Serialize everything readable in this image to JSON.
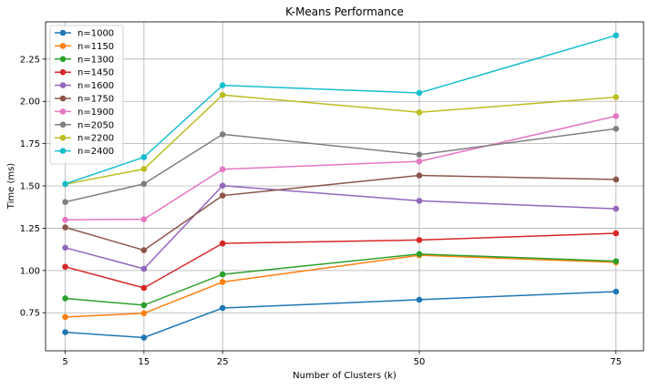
{
  "chart_data": {
    "type": "line",
    "title": "K-Means Performance",
    "xlabel": "Number of Clusters (k)",
    "ylabel": "Time (ms)",
    "x": [
      5,
      15,
      25,
      50,
      75
    ],
    "xlim": [
      2.5,
      78.5
    ],
    "ylim": [
      0.525,
      2.47
    ],
    "yticks": [
      0.75,
      1.0,
      1.25,
      1.5,
      1.75,
      2.0,
      2.25
    ],
    "ytick_labels": [
      "0.75",
      "1.00",
      "1.25",
      "1.50",
      "1.75",
      "2.00",
      "2.25"
    ],
    "xtick_labels": [
      "5",
      "15",
      "25",
      "50",
      "75"
    ],
    "grid": true,
    "legend_position": "top-left",
    "series": [
      {
        "name": "n=1000",
        "color": "#1f77b4",
        "values": [
          0.635,
          0.603,
          0.778,
          0.827,
          0.875
        ]
      },
      {
        "name": "n=1150",
        "color": "#ff7f0e",
        "values": [
          0.725,
          0.747,
          0.932,
          1.09,
          1.048
        ]
      },
      {
        "name": "n=1300",
        "color": "#2ca02c",
        "values": [
          0.835,
          0.795,
          0.977,
          1.097,
          1.055
        ]
      },
      {
        "name": "n=1450",
        "color": "#d62728",
        "values": [
          1.022,
          0.897,
          1.16,
          1.18,
          1.22
        ]
      },
      {
        "name": "n=1600",
        "color": "#9467bd",
        "values": [
          1.135,
          1.01,
          1.502,
          1.412,
          1.365
        ]
      },
      {
        "name": "n=1750",
        "color": "#8c564b",
        "values": [
          1.255,
          1.12,
          1.443,
          1.562,
          1.538
        ]
      },
      {
        "name": "n=1900",
        "color": "#e377c2",
        "values": [
          1.3,
          1.303,
          1.598,
          1.645,
          1.913
        ]
      },
      {
        "name": "n=2050",
        "color": "#7f7f7f",
        "values": [
          1.405,
          1.512,
          1.805,
          1.685,
          1.838
        ]
      },
      {
        "name": "n=2200",
        "color": "#bcbd22",
        "values": [
          1.51,
          1.6,
          2.038,
          1.935,
          2.025
        ]
      },
      {
        "name": "n=2400",
        "color": "#17becf",
        "values": [
          1.512,
          1.67,
          2.095,
          2.05,
          2.39
        ]
      }
    ]
  }
}
